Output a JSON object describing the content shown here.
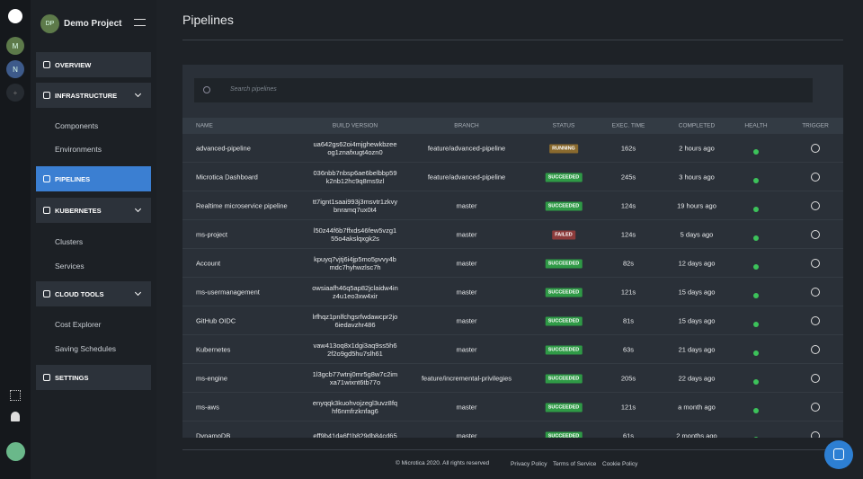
{
  "sidebar": {
    "avatars": [
      "M",
      "N"
    ],
    "project": {
      "initials": "DP",
      "name": "Demo Project"
    },
    "nav": {
      "overview": "OVERVIEW",
      "infrastructure": "INFRASTRUCTURE",
      "components": "Components",
      "environments": "Environments",
      "pipelines": "PIPELINES",
      "kubernetes": "KUBERNETES",
      "clusters": "Clusters",
      "services": "Services",
      "cloud_tools": "CLOUD TOOLS",
      "cost_explorer": "Cost Explorer",
      "saving_schedules": "Saving Schedules",
      "settings": "SETTINGS"
    }
  },
  "header": {
    "title": "Pipelines"
  },
  "search": {
    "placeholder": "Search pipelines"
  },
  "table": {
    "columns": [
      "NAME",
      "BUILD VERSION",
      "BRANCH",
      "STATUS",
      "EXEC. TIME",
      "COMPLETED",
      "HEALTH",
      "TRIGGER"
    ],
    "rows": [
      {
        "name": "advanced-pipeline",
        "build": "ua642gs62oi4mjghewkbzeeog1znafxugt4ozn0",
        "branch": "feature/advanced-pipeline",
        "status": "RUNNING",
        "status_color": "#8a6a2e",
        "exec_time": "162s",
        "completed": "2 hours ago"
      },
      {
        "name": "Microtica Dashboard",
        "build": "036nbb7nbsp6ae6belbbp59k2nb12hc9q8ms9zl",
        "branch": "feature/advanced-pipeline",
        "status": "SUCCEEDED",
        "status_color": "#2f9a46",
        "exec_time": "245s",
        "completed": "3 hours ago"
      },
      {
        "name": "Realtime microservice pipeline",
        "build": "tt7ignt1saai993j3msvtr1zkvybnramq7ux0t4",
        "branch": "master",
        "status": "SUCCEEDED",
        "status_color": "#2f9a46",
        "exec_time": "124s",
        "completed": "19 hours ago"
      },
      {
        "name": "ms-project",
        "build": "l50z44f6b7ffxds46few5vzg155o4akslqxgk2s",
        "branch": "master",
        "status": "FAILED",
        "status_color": "#8c3b3b",
        "exec_time": "124s",
        "completed": "5 days ago"
      },
      {
        "name": "Account",
        "build": "kpuyq7vjtj6i4jp5mo5pvvy4bmdc7hyhwzlsc7h",
        "branch": "master",
        "status": "SUCCEEDED",
        "status_color": "#2f9a46",
        "exec_time": "82s",
        "completed": "12 days ago"
      },
      {
        "name": "ms-usermanagement",
        "build": "owsiaafh46q5ap82jclaidw4inz4u1eo3xw4xir",
        "branch": "master",
        "status": "SUCCEEDED",
        "status_color": "#2f9a46",
        "exec_time": "121s",
        "completed": "15 days ago"
      },
      {
        "name": "GitHub OIDC",
        "build": "lrfhqz1pnlfchgsrfwdawcpr2jo6iedavzhr486",
        "branch": "master",
        "status": "SUCCEEDED",
        "status_color": "#2f9a46",
        "exec_time": "81s",
        "completed": "15 days ago"
      },
      {
        "name": "Kubernetes",
        "build": "vaw413oq8x1dgi3aq9ss5h62f2o9gd5hu7slh61",
        "branch": "master",
        "status": "SUCCEEDED",
        "status_color": "#2f9a46",
        "exec_time": "63s",
        "completed": "21 days ago"
      },
      {
        "name": "ms-engine",
        "build": "1l3gcb77wtnj0mr5g8w7c2imxa71wixnt6tb77o",
        "branch": "feature/incremental-privilegies",
        "status": "SUCCEEDED",
        "status_color": "#2f9a46",
        "exec_time": "205s",
        "completed": "22 days ago"
      },
      {
        "name": "ms-aws",
        "build": "enyqqk3kuohvojzegl3uvz8fqhf6nmfrzknfag6",
        "branch": "master",
        "status": "SUCCEEDED",
        "status_color": "#2f9a46",
        "exec_time": "121s",
        "completed": "a month ago"
      },
      {
        "name": "DynamoDB",
        "build": "eff9b41da6f1b829db84cd65",
        "branch": "master",
        "status": "SUCCEEDED",
        "status_color": "#2f9a46",
        "exec_time": "61s",
        "completed": "2 months ago"
      }
    ]
  },
  "footer": {
    "copyright": "© Microtica 2020. All rights reserved",
    "links": [
      "Privacy Policy",
      "Terms of Service",
      "Cookie Policy"
    ]
  }
}
